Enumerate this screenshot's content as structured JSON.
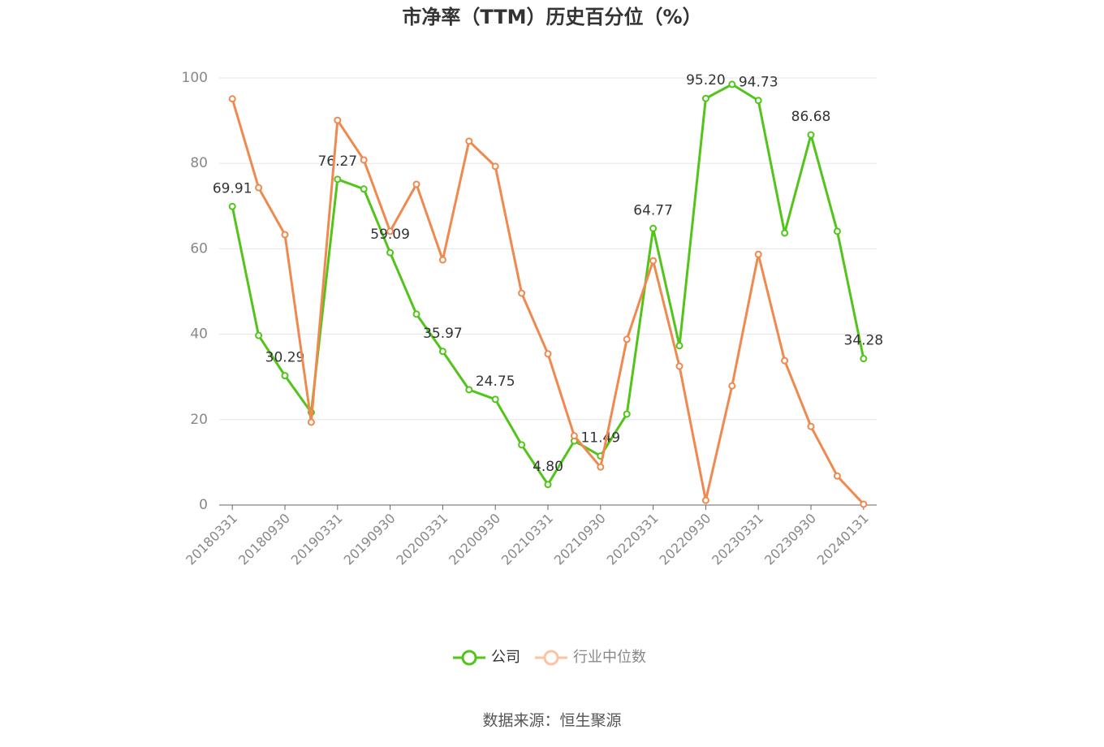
{
  "chart_data": {
    "type": "line",
    "title": "市净率（TTM）历史百分位（%）",
    "source": "数据来源：恒生聚源",
    "categories": [
      "20180331",
      null,
      "20180930",
      null,
      "20190331",
      null,
      "20190930",
      null,
      "20200331",
      null,
      "20200930",
      null,
      "20210331",
      null,
      "20210930",
      null,
      "20220331",
      null,
      "20220930",
      null,
      "20230331",
      null,
      "20230930",
      null,
      "20240131"
    ],
    "series": [
      {
        "name": "公司",
        "color": "#52c41a",
        "values": [
          69.91,
          39.7,
          30.29,
          21.7,
          76.27,
          74.0,
          59.09,
          44.7,
          35.97,
          27.0,
          24.75,
          14.1,
          4.8,
          15.0,
          11.49,
          21.3,
          64.77,
          37.3,
          95.2,
          98.5,
          94.73,
          63.7,
          86.68,
          64.1,
          34.28
        ],
        "value_labels": [
          "69.91",
          null,
          "30.29",
          null,
          "76.27",
          null,
          "59.09",
          null,
          "35.97",
          null,
          "24.75",
          null,
          "4.80",
          null,
          "11.49",
          null,
          "64.77",
          null,
          "95.20",
          null,
          "94.73",
          null,
          "86.68",
          null,
          "34.28"
        ]
      },
      {
        "name": "行业中位数",
        "color": "#f0894f",
        "values": [
          95.1,
          74.3,
          63.3,
          19.4,
          90.1,
          80.8,
          64.1,
          75.1,
          57.4,
          85.2,
          79.3,
          49.6,
          35.4,
          16.2,
          8.9,
          38.8,
          57.2,
          32.5,
          1.1,
          27.9,
          58.7,
          33.8,
          18.4,
          6.8,
          0.2
        ]
      }
    ],
    "ylim": [
      0,
      100
    ],
    "yticks": [
      0,
      20,
      40,
      60,
      80,
      100
    ],
    "grid": true,
    "legend": "bottom"
  }
}
